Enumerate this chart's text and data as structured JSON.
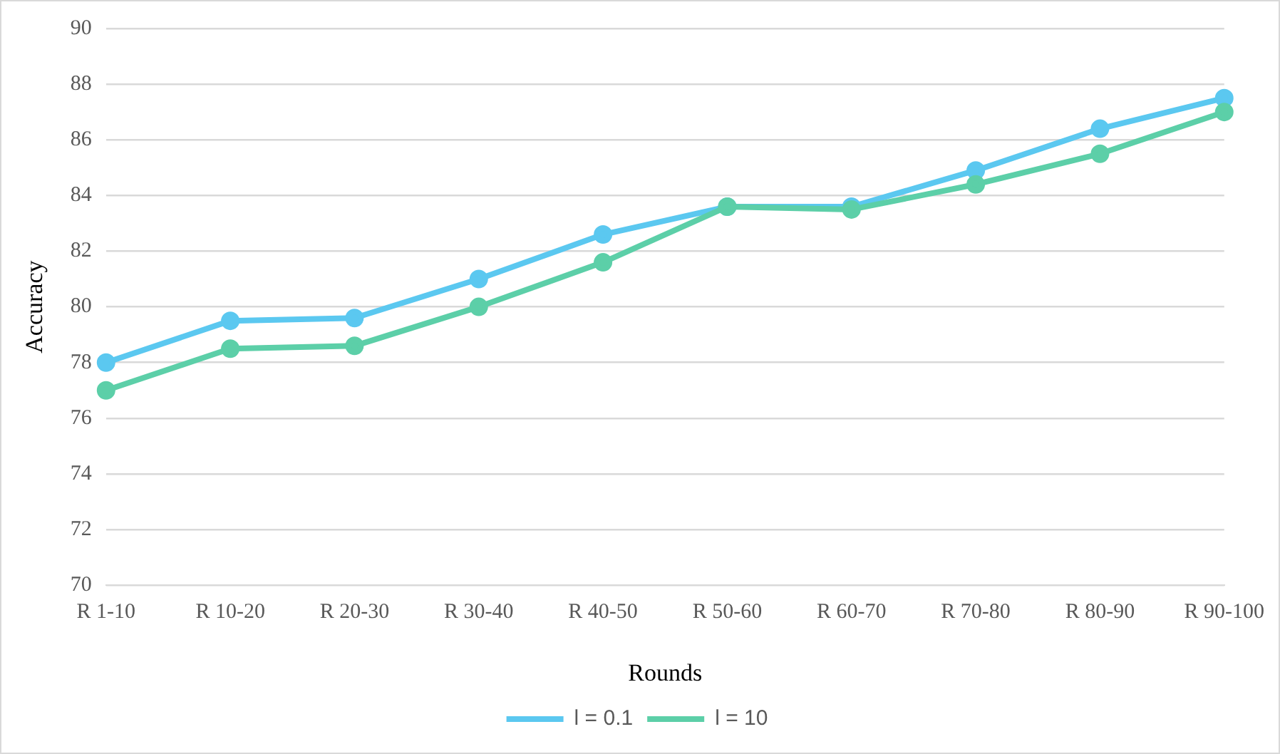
{
  "chart_data": {
    "type": "line",
    "xlabel": "Rounds",
    "ylabel": "Accuracy",
    "categories": [
      "R 1-10",
      "R 10-20",
      "R 20-30",
      "R 30-40",
      "R 40-50",
      "R 50-60",
      "R 60-70",
      "R 70-80",
      "R 80-90",
      "R 90-100"
    ],
    "series": [
      {
        "name": "l = 0.1",
        "color": "#5bc8f0",
        "values": [
          78.0,
          79.5,
          79.6,
          81.0,
          82.6,
          83.6,
          83.6,
          84.9,
          86.4,
          87.5
        ]
      },
      {
        "name": "l = 10",
        "color": "#5ccfa8",
        "values": [
          77.0,
          78.5,
          78.6,
          80.0,
          81.6,
          83.6,
          83.5,
          84.4,
          85.5,
          87.0
        ]
      }
    ],
    "ylim": [
      70,
      90
    ],
    "yticks": [
      70,
      72,
      74,
      76,
      78,
      80,
      82,
      84,
      86,
      88,
      90
    ],
    "grid": "y",
    "legend": "bottom",
    "marker": "circle",
    "line_style": "solid"
  }
}
